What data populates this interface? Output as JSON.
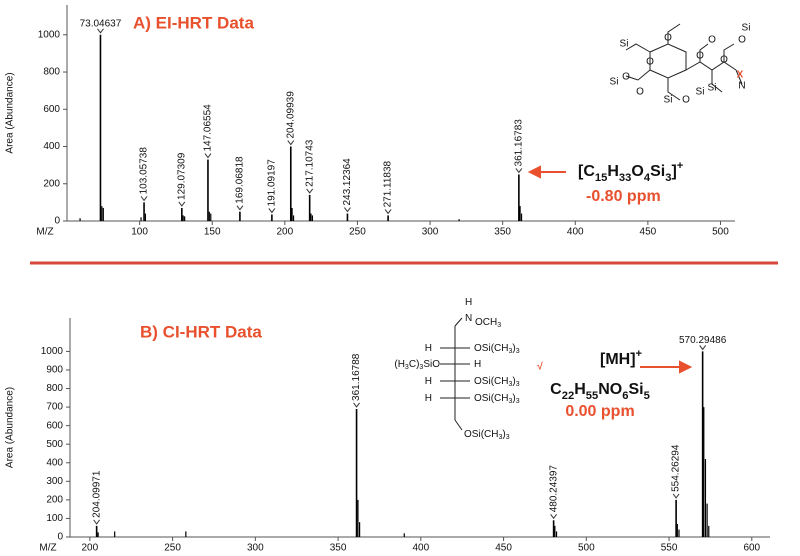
{
  "chart_data": [
    {
      "type": "spectrum",
      "title": "A) EI-HRT Data",
      "y_label": "Area (Abundance)",
      "x_label": "M/Z",
      "xlim": [
        50,
        510
      ],
      "ylim": [
        0,
        1160
      ],
      "xticks": [
        100,
        150,
        200,
        250,
        300,
        350,
        400,
        450,
        500
      ],
      "yticks": [
        0,
        200,
        400,
        600,
        800,
        1000
      ],
      "color": "#000000",
      "x": [
        73.04637,
        103.05738,
        129.07309,
        147.06554,
        169.06818,
        191.09197,
        204.09939,
        217.10743,
        243.12364,
        271.11838,
        361.16783
      ],
      "values": [
        1000,
        100,
        70,
        330,
        50,
        35,
        400,
        140,
        40,
        30,
        250
      ],
      "minor_peaks": {
        "x": [
          59,
          74,
          75,
          101,
          104,
          130,
          131,
          148,
          149,
          205,
          206,
          218,
          219,
          320,
          362,
          363
        ],
        "values": [
          15,
          80,
          70,
          20,
          40,
          30,
          25,
          50,
          40,
          70,
          30,
          40,
          30,
          10,
          80,
          40
        ]
      },
      "ion_label": "[C15H33O4Si3]+",
      "error": "-0.80 ppm",
      "verdict": "X",
      "structure_labels": [
        "Si",
        "O",
        "O",
        "Si",
        "O",
        "Si",
        "O",
        "O",
        "O",
        "Si",
        "O",
        "Si",
        "N",
        "O",
        "O",
        "Si"
      ]
    },
    {
      "type": "spectrum",
      "title": "B) CI-HRT Data",
      "y_label": "Area (Abundance)",
      "x_label": "M/Z",
      "xlim": [
        188,
        611
      ],
      "ylim": [
        0,
        1180
      ],
      "xticks": [
        200,
        250,
        300,
        350,
        400,
        450,
        500,
        550,
        600
      ],
      "yticks": [
        0,
        100,
        200,
        300,
        400,
        500,
        600,
        700,
        800,
        900,
        1000
      ],
      "color": "#000000",
      "x": [
        204.09971,
        361.16788,
        480.24397,
        554.26294,
        570.29486
      ],
      "values": [
        60,
        690,
        90,
        200,
        1000
      ],
      "minor_peaks": {
        "x": [
          205,
          215,
          258,
          362,
          363,
          390,
          481,
          482,
          555,
          556,
          571,
          572,
          573,
          574
        ],
        "values": [
          25,
          30,
          30,
          200,
          80,
          20,
          60,
          30,
          70,
          40,
          700,
          420,
          180,
          60
        ]
      },
      "ion_label": "[MH]+",
      "formula": "C22H55NO6Si5",
      "error": "0.00 ppm",
      "verdict": "√",
      "structure_labels": [
        "H",
        "N",
        "OCH3",
        "H",
        "OSi(CH3)3",
        "(H3C)3SiO",
        "H",
        "H",
        "OSi(CH3)3",
        "H",
        "OSi(CH3)3",
        "OSi(CH3)3"
      ]
    }
  ]
}
